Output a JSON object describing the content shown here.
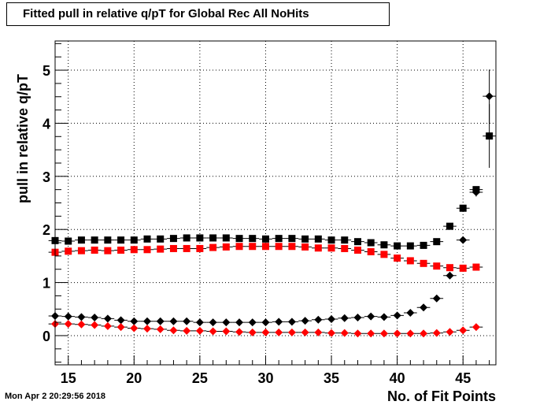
{
  "header": {
    "title": "Fitted pull in relative q/pT for Global Rec All NoHits",
    "timestamp": "Mon Apr  2 20:29:56 2018"
  },
  "chart_data": {
    "type": "scatter",
    "title": "Fitted pull in relative q/pT for Global Rec All NoHits",
    "xlabel": "No. of Fit Points",
    "ylabel": "pull in relative q/pT",
    "xlim": [
      14,
      47.5
    ],
    "ylim": [
      -0.55,
      5.55
    ],
    "x_ticks": [
      15,
      20,
      25,
      30,
      35,
      40,
      45
    ],
    "y_ticks": [
      0,
      1,
      2,
      3,
      4,
      5
    ],
    "grid": true,
    "series": [
      {
        "color": "#000000",
        "marker": "square",
        "x": [
          14,
          15,
          16,
          17,
          18,
          19,
          20,
          21,
          22,
          23,
          24,
          25,
          26,
          27,
          28,
          29,
          30,
          31,
          32,
          33,
          34,
          35,
          36,
          37,
          38,
          39,
          40,
          41,
          42,
          43,
          44,
          45,
          46,
          47
        ],
        "y": [
          1.79,
          1.78,
          1.8,
          1.8,
          1.8,
          1.8,
          1.8,
          1.82,
          1.82,
          1.83,
          1.84,
          1.84,
          1.84,
          1.84,
          1.83,
          1.83,
          1.82,
          1.83,
          1.83,
          1.82,
          1.82,
          1.8,
          1.8,
          1.77,
          1.75,
          1.71,
          1.69,
          1.69,
          1.7,
          1.77,
          2.06,
          2.4,
          2.75,
          3.76
        ],
        "yerr": [
          0.01,
          0.01,
          0.01,
          0.01,
          0.01,
          0.01,
          0.01,
          0.01,
          0.01,
          0.01,
          0.01,
          0.01,
          0.01,
          0.01,
          0.01,
          0.01,
          0.01,
          0.01,
          0.01,
          0.01,
          0.01,
          0.01,
          0.01,
          0.01,
          0.01,
          0.01,
          0.01,
          0.01,
          0.01,
          0.01,
          0.02,
          0.03,
          0.06,
          0.6
        ]
      },
      {
        "color": "#ff0000",
        "marker": "square",
        "x": [
          14,
          15,
          16,
          17,
          18,
          19,
          20,
          21,
          22,
          23,
          24,
          25,
          26,
          27,
          28,
          29,
          30,
          31,
          32,
          33,
          34,
          35,
          36,
          37,
          38,
          39,
          40,
          41,
          42,
          43,
          44,
          45,
          46
        ],
        "y": [
          1.57,
          1.59,
          1.6,
          1.61,
          1.6,
          1.61,
          1.62,
          1.62,
          1.63,
          1.64,
          1.64,
          1.64,
          1.66,
          1.67,
          1.68,
          1.68,
          1.68,
          1.68,
          1.68,
          1.67,
          1.65,
          1.65,
          1.64,
          1.61,
          1.58,
          1.53,
          1.46,
          1.41,
          1.36,
          1.31,
          1.28,
          1.27,
          1.29
        ],
        "yerr": [
          0.01,
          0.01,
          0.01,
          0.01,
          0.01,
          0.01,
          0.01,
          0.01,
          0.01,
          0.01,
          0.01,
          0.01,
          0.01,
          0.01,
          0.01,
          0.01,
          0.01,
          0.01,
          0.01,
          0.01,
          0.01,
          0.01,
          0.01,
          0.01,
          0.01,
          0.01,
          0.01,
          0.01,
          0.01,
          0.01,
          0.01,
          0.02,
          0.03
        ]
      },
      {
        "color": "#000000",
        "marker": "diamond",
        "x": [
          14,
          15,
          16,
          17,
          18,
          19,
          20,
          21,
          22,
          23,
          24,
          25,
          26,
          27,
          28,
          29,
          30,
          31,
          32,
          33,
          34,
          35,
          36,
          37,
          38,
          39,
          40,
          41,
          42,
          43,
          44,
          45,
          46,
          47
        ],
        "y": [
          0.37,
          0.36,
          0.35,
          0.34,
          0.32,
          0.29,
          0.27,
          0.27,
          0.27,
          0.27,
          0.27,
          0.25,
          0.25,
          0.25,
          0.25,
          0.25,
          0.25,
          0.26,
          0.26,
          0.28,
          0.3,
          0.31,
          0.33,
          0.34,
          0.36,
          0.35,
          0.38,
          0.43,
          0.53,
          0.7,
          1.13,
          1.8,
          2.7,
          4.51
        ],
        "yerr": [
          0.01,
          0.01,
          0.01,
          0.01,
          0.01,
          0.01,
          0.01,
          0.01,
          0.01,
          0.01,
          0.01,
          0.01,
          0.01,
          0.01,
          0.01,
          0.01,
          0.01,
          0.01,
          0.01,
          0.01,
          0.01,
          0.01,
          0.01,
          0.01,
          0.01,
          0.01,
          0.01,
          0.01,
          0.02,
          0.03,
          0.04,
          0.05,
          0.08,
          0.5
        ]
      },
      {
        "color": "#ff0000",
        "marker": "diamond",
        "x": [
          14,
          15,
          16,
          17,
          18,
          19,
          20,
          21,
          22,
          23,
          24,
          25,
          26,
          27,
          28,
          29,
          30,
          31,
          32,
          33,
          34,
          35,
          36,
          37,
          38,
          39,
          40,
          41,
          42,
          43,
          44,
          45,
          46
        ],
        "y": [
          0.22,
          0.22,
          0.21,
          0.2,
          0.18,
          0.16,
          0.14,
          0.13,
          0.12,
          0.1,
          0.09,
          0.09,
          0.08,
          0.08,
          0.07,
          0.06,
          0.06,
          0.06,
          0.06,
          0.06,
          0.06,
          0.05,
          0.05,
          0.04,
          0.04,
          0.04,
          0.04,
          0.04,
          0.04,
          0.05,
          0.07,
          0.1,
          0.16
        ],
        "yerr": [
          0.01,
          0.01,
          0.01,
          0.01,
          0.01,
          0.01,
          0.01,
          0.01,
          0.01,
          0.01,
          0.01,
          0.01,
          0.01,
          0.01,
          0.01,
          0.01,
          0.01,
          0.01,
          0.01,
          0.01,
          0.01,
          0.01,
          0.01,
          0.01,
          0.01,
          0.01,
          0.01,
          0.01,
          0.01,
          0.01,
          0.01,
          0.02,
          0.02
        ]
      }
    ]
  }
}
